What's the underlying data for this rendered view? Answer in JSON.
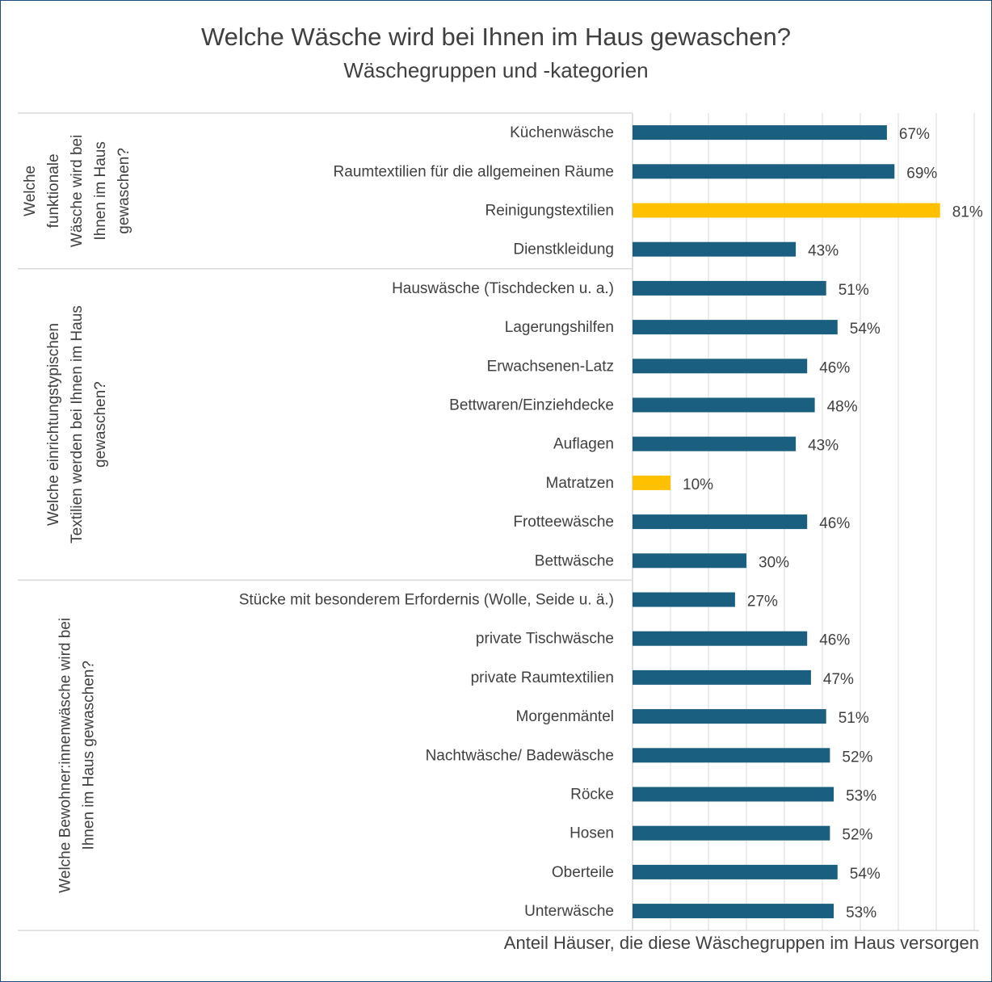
{
  "chart_data": {
    "type": "bar",
    "orientation": "horizontal",
    "title": "Welche Wäsche wird bei Ihnen im Haus gewaschen?",
    "subtitle": "Wäschegruppen und -kategorien",
    "xlabel": "Anteil Häuser, die diese Wäschegruppen im Haus versorgen",
    "xlim": [
      0,
      90
    ],
    "grid": true,
    "colors": {
      "default": "#1a5e80",
      "highlight": "#ffc000",
      "grid": "#d9d9d9",
      "text": "#404040"
    },
    "groups": [
      {
        "label_lines": [
          "Welche",
          "funktionale",
          "Wäsche wird bei",
          "Ihnen im Haus",
          "gewaschen?"
        ],
        "items": [
          {
            "label": "Küchenwäsche",
            "value": 67,
            "value_label": "67%",
            "highlight": false
          },
          {
            "label": "Raumtextilien für die allgemeinen Räume",
            "value": 69,
            "value_label": "69%",
            "highlight": false
          },
          {
            "label": "Reinigungstextilien",
            "value": 81,
            "value_label": "81%",
            "highlight": true
          },
          {
            "label": "Dienstkleidung",
            "value": 43,
            "value_label": "43%",
            "highlight": false
          }
        ]
      },
      {
        "label_lines": [
          "Welche einrichtungstypischen",
          "Textilien werden bei Ihnen im Haus",
          "gewaschen?"
        ],
        "items": [
          {
            "label": "Hauswäsche (Tischdecken u. a.)",
            "value": 51,
            "value_label": "51%",
            "highlight": false
          },
          {
            "label": "Lagerungshilfen",
            "value": 54,
            "value_label": "54%",
            "highlight": false
          },
          {
            "label": "Erwachsenen-Latz",
            "value": 46,
            "value_label": "46%",
            "highlight": false
          },
          {
            "label": "Bettwaren/Einziehdecke",
            "value": 48,
            "value_label": "48%",
            "highlight": false
          },
          {
            "label": "Auflagen",
            "value": 43,
            "value_label": "43%",
            "highlight": false
          },
          {
            "label": "Matratzen",
            "value": 10,
            "value_label": "10%",
            "highlight": true
          },
          {
            "label": "Frotteewäsche",
            "value": 46,
            "value_label": "46%",
            "highlight": false
          },
          {
            "label": "Bettwäsche",
            "value": 30,
            "value_label": "30%",
            "highlight": false
          }
        ]
      },
      {
        "label_lines": [
          "Welche Bewohner:innenwäsche wird bei",
          "Ihnen im  Haus gewaschen?"
        ],
        "items": [
          {
            "label": "Stücke mit besonderem Erfordernis (Wolle, Seide u. ä.)",
            "value": 27,
            "value_label": "27%",
            "highlight": false
          },
          {
            "label": "private Tischwäsche",
            "value": 46,
            "value_label": "46%",
            "highlight": false
          },
          {
            "label": "private Raumtextilien",
            "value": 47,
            "value_label": "47%",
            "highlight": false
          },
          {
            "label": "Morgenmäntel",
            "value": 51,
            "value_label": "51%",
            "highlight": false
          },
          {
            "label": "Nachtwäsche/ Badewäsche",
            "value": 52,
            "value_label": "52%",
            "highlight": false
          },
          {
            "label": "Röcke",
            "value": 53,
            "value_label": "53%",
            "highlight": false
          },
          {
            "label": "Hosen",
            "value": 52,
            "value_label": "52%",
            "highlight": false
          },
          {
            "label": "Oberteile",
            "value": 54,
            "value_label": "54%",
            "highlight": false
          },
          {
            "label": "Unterwäsche",
            "value": 53,
            "value_label": "53%",
            "highlight": false
          }
        ]
      }
    ]
  }
}
